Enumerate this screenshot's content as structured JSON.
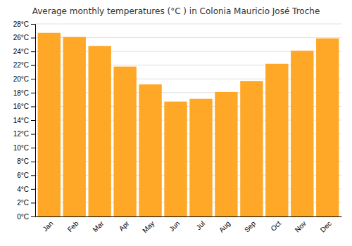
{
  "chart_data": {
    "type": "bar",
    "title": "Average monthly temperatures (°C ) in Colonia Mauricio José Troche",
    "categories": [
      "Jan",
      "Feb",
      "Mar",
      "Apr",
      "May",
      "Jun",
      "Jul",
      "Aug",
      "Sep",
      "Oct",
      "Nov",
      "Dec"
    ],
    "values": [
      26.7,
      26.1,
      24.8,
      21.8,
      19.2,
      16.7,
      17.1,
      18.1,
      19.7,
      22.2,
      24.1,
      25.9
    ],
    "color": "#FFA726",
    "ylim": [
      0,
      28
    ],
    "yticks": [
      {
        "value": 0,
        "label": "0°C"
      },
      {
        "value": 2,
        "label": "2°C"
      },
      {
        "value": 4,
        "label": "4°C"
      },
      {
        "value": 6,
        "label": "6°C"
      },
      {
        "value": 8,
        "label": "8°C"
      },
      {
        "value": 10,
        "label": "10°C"
      },
      {
        "value": 12,
        "label": "12°C"
      },
      {
        "value": 14,
        "label": "14°C"
      },
      {
        "value": 16,
        "label": "16°C"
      },
      {
        "value": 18,
        "label": "18°C"
      },
      {
        "value": 20,
        "label": "20°C"
      },
      {
        "value": 22,
        "label": "22°C"
      },
      {
        "value": 24,
        "label": "24°C"
      },
      {
        "value": 26,
        "label": "26°C"
      },
      {
        "value": 28,
        "label": "28°C"
      }
    ],
    "grid": true
  }
}
